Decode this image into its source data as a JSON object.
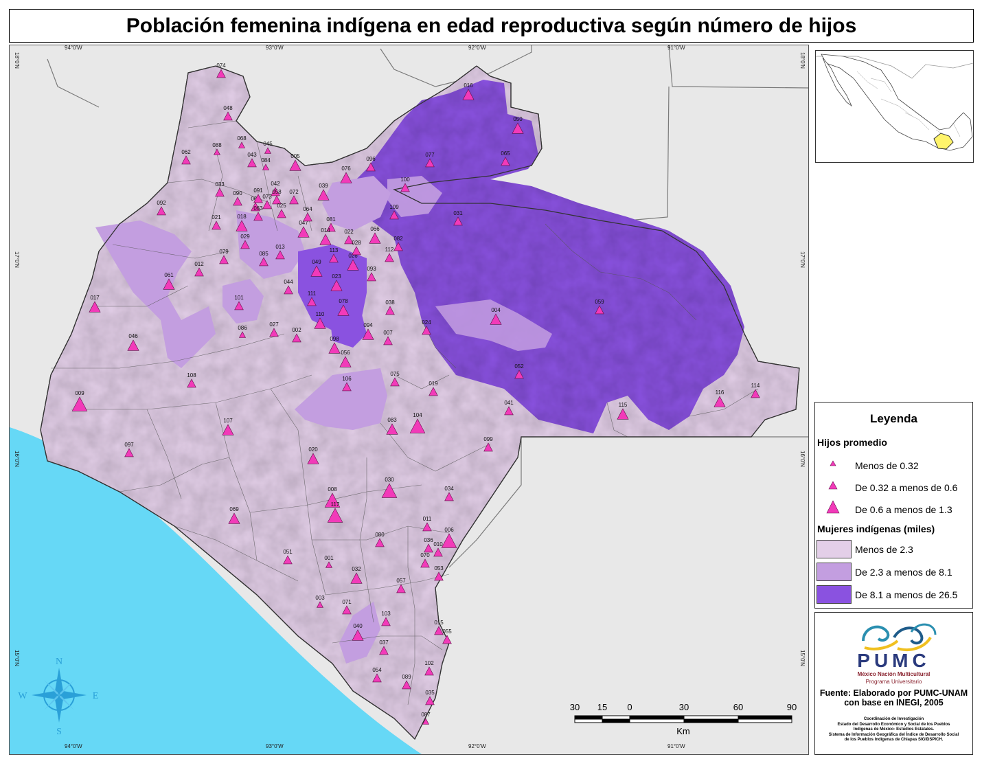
{
  "title": "Población femenina indígena en edad reproductiva según número de hijos",
  "colors": {
    "ocean": "#66d8f6",
    "land_outside": "#e6e6e6",
    "class_low": "#e3cfe8",
    "class_mid": "#c39ee0",
    "class_high": "#8a52e0",
    "triangle": "#f23ab9"
  },
  "graticule": {
    "lon_labels": [
      "94°0'W",
      "93°0'W",
      "92°0'W",
      "91°0'W"
    ],
    "lat_labels": [
      "18°0'N",
      "17°0'N",
      "16°0'N",
      "15°0'N"
    ]
  },
  "compass": {
    "n": "N",
    "s": "S",
    "e": "E",
    "w": "W"
  },
  "scale_bar": {
    "ticks": [
      "30",
      "15",
      "0",
      "30",
      "60",
      "90"
    ],
    "unit": "Km"
  },
  "municipalities": [
    {
      "code": "074",
      "cls": "low",
      "size": 1
    },
    {
      "code": "048",
      "cls": "low",
      "size": 1
    },
    {
      "code": "016",
      "cls": "low",
      "size": 2
    },
    {
      "code": "050",
      "cls": "low",
      "size": 2
    },
    {
      "code": "068",
      "cls": "low",
      "size": 0
    },
    {
      "code": "088",
      "cls": "low",
      "size": 0
    },
    {
      "code": "062",
      "cls": "low",
      "size": 1
    },
    {
      "code": "045",
      "cls": "low",
      "size": 0
    },
    {
      "code": "043",
      "cls": "low",
      "size": 1
    },
    {
      "code": "084",
      "cls": "low",
      "size": 0
    },
    {
      "code": "005",
      "cls": "low",
      "size": 2
    },
    {
      "code": "065",
      "cls": "high",
      "size": 1
    },
    {
      "code": "077",
      "cls": "high",
      "size": 1
    },
    {
      "code": "096",
      "cls": "mid",
      "size": 1
    },
    {
      "code": "076",
      "cls": "mid",
      "size": 2
    },
    {
      "code": "100",
      "cls": "low",
      "size": 1
    },
    {
      "code": "033",
      "cls": "low",
      "size": 1
    },
    {
      "code": "092",
      "cls": "low",
      "size": 1
    },
    {
      "code": "039",
      "cls": "mid",
      "size": 2
    },
    {
      "code": "072",
      "cls": "mid",
      "size": 1
    },
    {
      "code": "042",
      "cls": "low",
      "size": 1
    },
    {
      "code": "109",
      "cls": "mid",
      "size": 1
    },
    {
      "code": "031",
      "cls": "high",
      "size": 1
    },
    {
      "code": "021",
      "cls": "low",
      "size": 1
    },
    {
      "code": "018",
      "cls": "mid",
      "size": 2
    },
    {
      "code": "047",
      "cls": "mid",
      "size": 2
    },
    {
      "code": "081",
      "cls": "mid",
      "size": 1
    },
    {
      "code": "066",
      "cls": "mid",
      "size": 2
    },
    {
      "code": "022",
      "cls": "high",
      "size": 1
    },
    {
      "code": "014",
      "cls": "mid",
      "size": 2
    },
    {
      "code": "029",
      "cls": "low",
      "size": 1
    },
    {
      "code": "082",
      "cls": "low",
      "size": 1
    },
    {
      "code": "013",
      "cls": "mid",
      "size": 1
    },
    {
      "code": "112",
      "cls": "mid",
      "size": 1
    },
    {
      "code": "079",
      "cls": "low",
      "size": 1
    },
    {
      "code": "085",
      "cls": "low",
      "size": 1
    },
    {
      "code": "012",
      "cls": "low",
      "size": 1
    },
    {
      "code": "049",
      "cls": "mid",
      "size": 2
    },
    {
      "code": "026",
      "cls": "mid",
      "size": 2
    },
    {
      "code": "093",
      "cls": "mid",
      "size": 1
    },
    {
      "code": "061",
      "cls": "mid",
      "size": 2
    },
    {
      "code": "023",
      "cls": "high",
      "size": 2
    },
    {
      "code": "044",
      "cls": "low",
      "size": 1
    },
    {
      "code": "017",
      "cls": "low",
      "size": 2
    },
    {
      "code": "101",
      "cls": "mid",
      "size": 1
    },
    {
      "code": "111",
      "cls": "mid",
      "size": 1
    },
    {
      "code": "078",
      "cls": "high",
      "size": 2
    },
    {
      "code": "038",
      "cls": "low",
      "size": 1
    },
    {
      "code": "004",
      "cls": "mid",
      "size": 2
    },
    {
      "code": "059",
      "cls": "high",
      "size": 1
    },
    {
      "code": "086",
      "cls": "low",
      "size": 0
    },
    {
      "code": "027",
      "cls": "low",
      "size": 1
    },
    {
      "code": "002",
      "cls": "low",
      "size": 1
    },
    {
      "code": "110",
      "cls": "low",
      "size": 2
    },
    {
      "code": "094",
      "cls": "mid",
      "size": 2
    },
    {
      "code": "024",
      "cls": "low",
      "size": 1
    },
    {
      "code": "007",
      "cls": "low",
      "size": 1
    },
    {
      "code": "046",
      "cls": "low",
      "size": 2
    },
    {
      "code": "098",
      "cls": "low",
      "size": 2
    },
    {
      "code": "056",
      "cls": "mid",
      "size": 2
    },
    {
      "code": "052",
      "cls": "high",
      "size": 1
    },
    {
      "code": "108",
      "cls": "low",
      "size": 1
    },
    {
      "code": "075",
      "cls": "low",
      "size": 1
    },
    {
      "code": "019",
      "cls": "low",
      "size": 1
    },
    {
      "code": "106",
      "cls": "mid",
      "size": 1
    },
    {
      "code": "009",
      "cls": "low",
      "size": 3
    },
    {
      "code": "041",
      "cls": "low",
      "size": 1
    },
    {
      "code": "116",
      "cls": "low",
      "size": 2
    },
    {
      "code": "115",
      "cls": "low",
      "size": 2
    },
    {
      "code": "114",
      "cls": "low",
      "size": 1
    },
    {
      "code": "083",
      "cls": "low",
      "size": 2
    },
    {
      "code": "104",
      "cls": "low",
      "size": 3
    },
    {
      "code": "107",
      "cls": "low",
      "size": 2
    },
    {
      "code": "097",
      "cls": "low",
      "size": 1
    },
    {
      "code": "099",
      "cls": "low",
      "size": 1
    },
    {
      "code": "020",
      "cls": "low",
      "size": 2
    },
    {
      "code": "008",
      "cls": "low",
      "size": 3
    },
    {
      "code": "030",
      "cls": "low",
      "size": 3
    },
    {
      "code": "034",
      "cls": "low",
      "size": 1
    },
    {
      "code": "117",
      "cls": "low",
      "size": 3
    },
    {
      "code": "069",
      "cls": "low",
      "size": 2
    },
    {
      "code": "011",
      "cls": "low",
      "size": 1
    },
    {
      "code": "006",
      "cls": "low",
      "size": 3
    },
    {
      "code": "080",
      "cls": "low",
      "size": 1
    },
    {
      "code": "036",
      "cls": "low",
      "size": 1
    },
    {
      "code": "010",
      "cls": "low",
      "size": 1
    },
    {
      "code": "051",
      "cls": "low",
      "size": 1
    },
    {
      "code": "070",
      "cls": "low",
      "size": 1
    },
    {
      "code": "001",
      "cls": "low",
      "size": 0
    },
    {
      "code": "053",
      "cls": "low",
      "size": 1
    },
    {
      "code": "032",
      "cls": "low",
      "size": 2
    },
    {
      "code": "057",
      "cls": "low",
      "size": 1
    },
    {
      "code": "003",
      "cls": "low",
      "size": 0
    },
    {
      "code": "071",
      "cls": "low",
      "size": 1
    },
    {
      "code": "103",
      "cls": "mid",
      "size": 1
    },
    {
      "code": "015",
      "cls": "low",
      "size": 1
    },
    {
      "code": "055",
      "cls": "low",
      "size": 1
    },
    {
      "code": "040",
      "cls": "mid",
      "size": 2
    },
    {
      "code": "037",
      "cls": "low",
      "size": 1
    },
    {
      "code": "102",
      "cls": "low",
      "size": 1
    },
    {
      "code": "054",
      "cls": "low",
      "size": 1
    },
    {
      "code": "089",
      "cls": "low",
      "size": 1
    },
    {
      "code": "035",
      "cls": "low",
      "size": 1
    },
    {
      "code": "087",
      "cls": "low",
      "size": 0
    },
    {
      "code": "090",
      "cls": "low",
      "size": 1
    },
    {
      "code": "067",
      "cls": "low",
      "size": 1
    },
    {
      "code": "073",
      "cls": "low",
      "size": 1
    },
    {
      "code": "091",
      "cls": "low",
      "size": 1
    },
    {
      "code": "058",
      "cls": "low",
      "size": 1
    },
    {
      "code": "063",
      "cls": "low",
      "size": 1
    },
    {
      "code": "025",
      "cls": "low",
      "size": 1
    },
    {
      "code": "064",
      "cls": "mid",
      "size": 1
    },
    {
      "code": "028",
      "cls": "mid",
      "size": 1
    },
    {
      "code": "113",
      "cls": "mid",
      "size": 1
    }
  ],
  "legend": {
    "title": "Leyenda",
    "hijos_title": "Hijos promedio",
    "hijos_items": [
      "Menos de 0.32",
      "De 0.32 a menos de 0.6",
      "De 0.6 a menos de  1.3"
    ],
    "mujeres_title": "Mujeres indígenas (miles)",
    "mujeres_items": [
      "Menos de 2.3",
      "De 2.3 a menos de 8.1",
      "De 8.1 a menos de 26.5"
    ]
  },
  "logo": {
    "name": "PUMC",
    "subtitle1": "México Nación Multicultural",
    "subtitle2": "Programa Universitario"
  },
  "source": "Fuente: Elaborado por PUMC-UNAM con base en INEGI, 2005",
  "credits": [
    "Coordinación de Investigación",
    "Estado del Desarrollo Económico y Social de los Pueblos",
    "Indígenas de México- Estudios Estatales.",
    "Sistema de Información Geográfica del Índice de Desarrollo Social",
    "de los Pueblos Indígenas de Chiapas SIGIDSPICH."
  ]
}
